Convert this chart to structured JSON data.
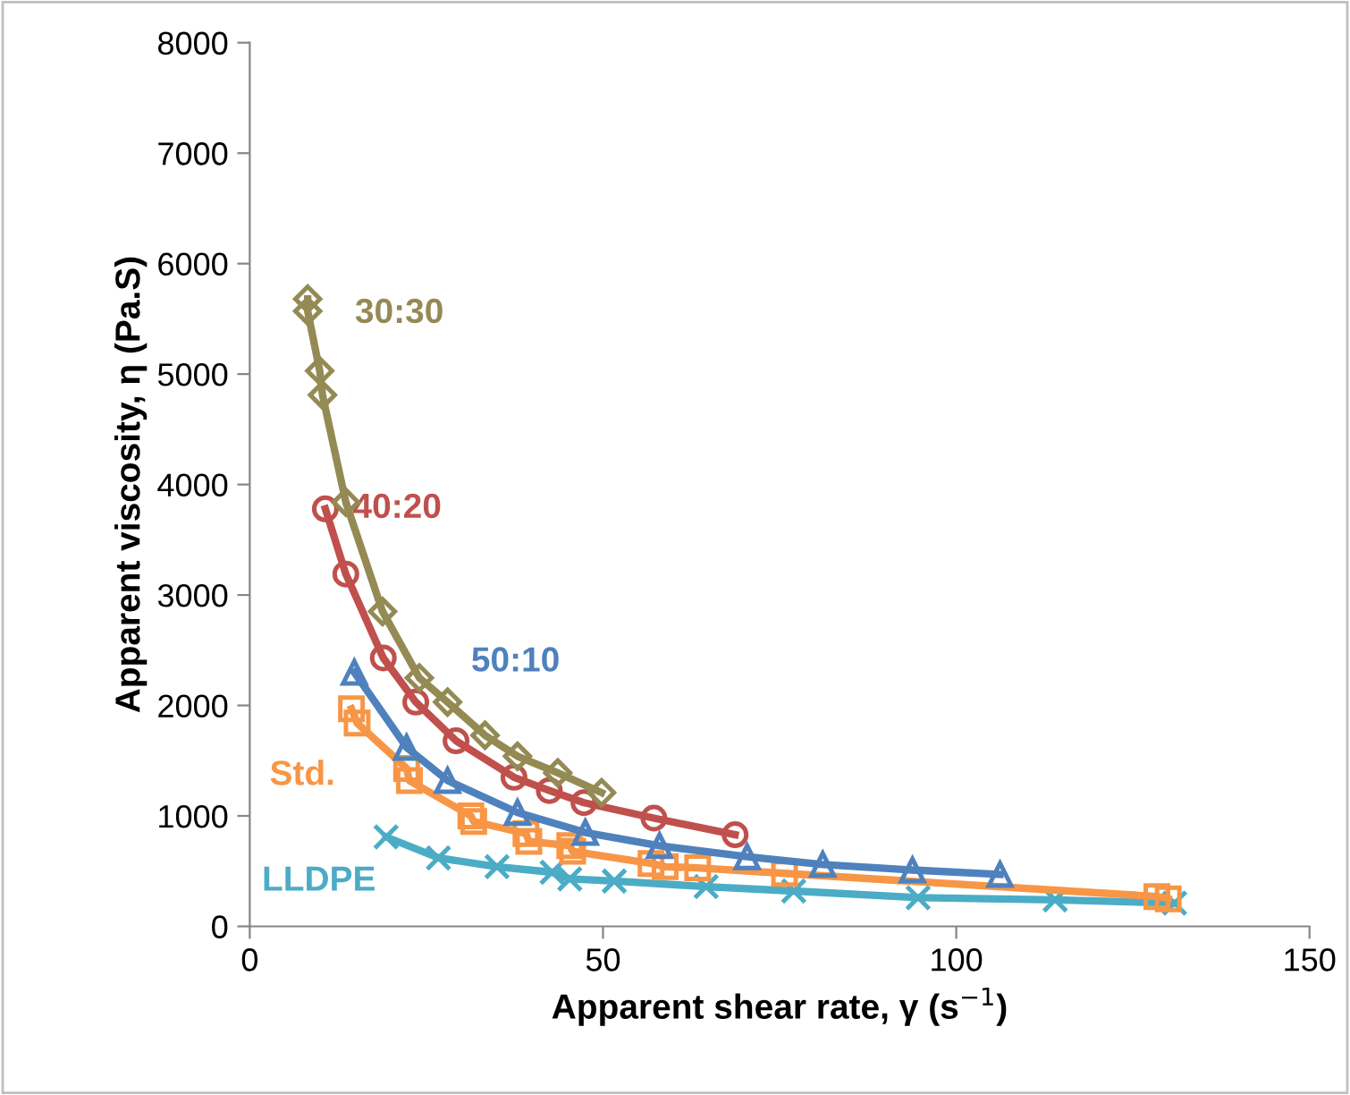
{
  "chart_data": {
    "type": "line",
    "xlabel": "Apparent shear rate, γ (s$^{−1}$)",
    "ylabel": "Apparent viscosity, η (Pa.S)",
    "xlim": [
      0,
      150
    ],
    "xticks": [
      0,
      50,
      100,
      150
    ],
    "ylim": [
      0,
      8000
    ],
    "yticks": [
      0,
      1000,
      2000,
      3000,
      4000,
      5000,
      6000,
      7000,
      8000
    ],
    "grid": false,
    "legend": false,
    "line_style": "solid",
    "series": [
      {
        "name": "30:30",
        "color": "#948a54",
        "marker": "diamond",
        "x": [
          8.2,
          8.2,
          9.9,
          10.3,
          13.6,
          18.8,
          24.0,
          28.0,
          33.3,
          37.9,
          43.6,
          49.8
        ],
        "values": [
          5680,
          5570,
          5030,
          4810,
          3840,
          2850,
          2250,
          2030,
          1730,
          1540,
          1390,
          1210
        ]
      },
      {
        "name": "40:20",
        "color": "#c0504d",
        "marker": "circle",
        "x": [
          10.7,
          13.6,
          18.9,
          23.5,
          29.2,
          37.4,
          42.4,
          47.3,
          57.2,
          68.7
        ],
        "values": [
          3780,
          3190,
          2430,
          2030,
          1680,
          1350,
          1230,
          1120,
          980,
          830
        ]
      },
      {
        "name": "50:10",
        "color": "#4f81bd",
        "marker": "triangle",
        "x": [
          14.8,
          22.2,
          28.0,
          37.9,
          47.5,
          58.0,
          70.4,
          81.1,
          93.8,
          106.2
        ],
        "values": [
          2300,
          1620,
          1320,
          1030,
          850,
          730,
          630,
          560,
          510,
          470
        ]
      },
      {
        "name": "Std.",
        "color": "#f79646",
        "marker": "square",
        "x": [
          14.4,
          15.2,
          22.2,
          22.6,
          31.3,
          31.7,
          39.1,
          39.5,
          45.3,
          45.7,
          56.8,
          58.8,
          63.4,
          75.7,
          128.4,
          130
        ],
        "values": [
          1970,
          1840,
          1430,
          1320,
          1000,
          950,
          840,
          770,
          730,
          680,
          570,
          540,
          530,
          480,
          270,
          250
        ]
      },
      {
        "name": "LLDPE",
        "color": "#4bacc6",
        "marker": "cross",
        "x": [
          19.3,
          26.7,
          35.0,
          42.8,
          45.3,
          51.6,
          64.6,
          77.0,
          94.6,
          114,
          130.9
        ],
        "values": [
          810,
          620,
          540,
          490,
          430,
          410,
          360,
          320,
          260,
          240,
          210
        ]
      }
    ]
  }
}
